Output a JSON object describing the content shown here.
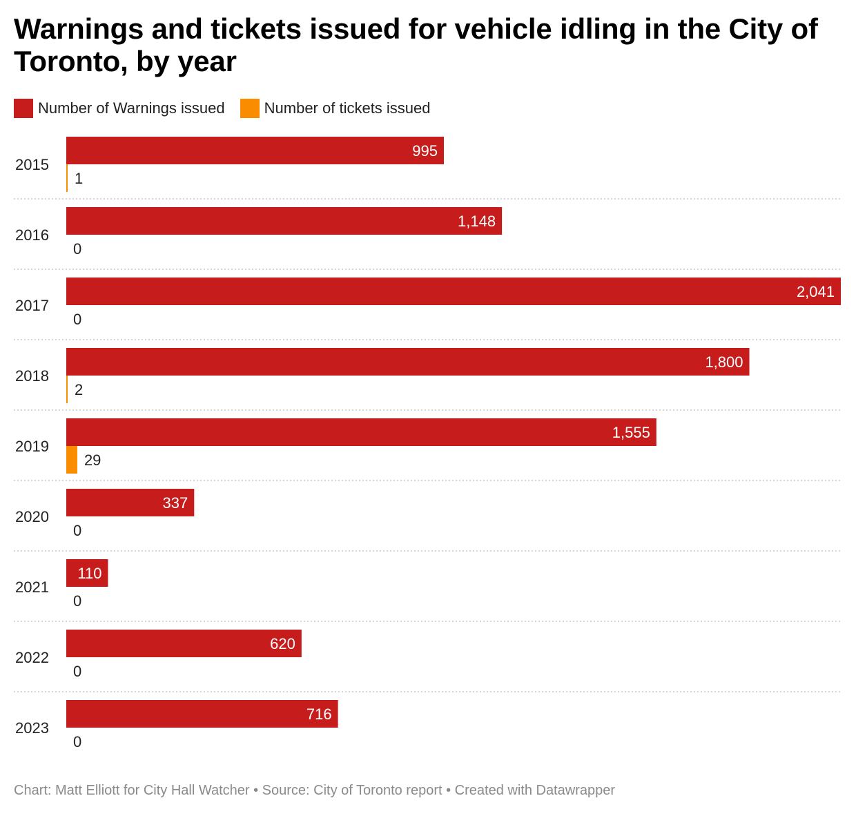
{
  "title": "Warnings and tickets issued for vehicle idling in the City of Toronto, by year",
  "legend": [
    {
      "label": "Number of Warnings issued",
      "color": "#c71c1c"
    },
    {
      "label": "Number of tickets issued",
      "color": "#fa8c00"
    }
  ],
  "footer": "Chart: Matt Elliott for City Hall Watcher • Source: City of Toronto report • Created with Datawrapper",
  "chart_data": {
    "type": "bar",
    "orientation": "horizontal",
    "grouped": true,
    "categories": [
      "2015",
      "2016",
      "2017",
      "2018",
      "2019",
      "2020",
      "2021",
      "2022",
      "2023"
    ],
    "series": [
      {
        "name": "Number of Warnings issued",
        "color": "#c71c1c",
        "values": [
          995,
          1148,
          2041,
          1800,
          1555,
          337,
          110,
          620,
          716
        ],
        "labels": [
          "995",
          "1,148",
          "2,041",
          "1,800",
          "1,555",
          "337",
          "110",
          "620",
          "716"
        ]
      },
      {
        "name": "Number of tickets issued",
        "color": "#fa8c00",
        "values": [
          1,
          0,
          0,
          2,
          29,
          0,
          0,
          0,
          0
        ],
        "labels": [
          "1",
          "0",
          "0",
          "2",
          "29",
          "0",
          "0",
          "0",
          "0"
        ]
      }
    ],
    "xlim": [
      0,
      2041
    ],
    "grid": false,
    "legend_position": "top-left"
  }
}
